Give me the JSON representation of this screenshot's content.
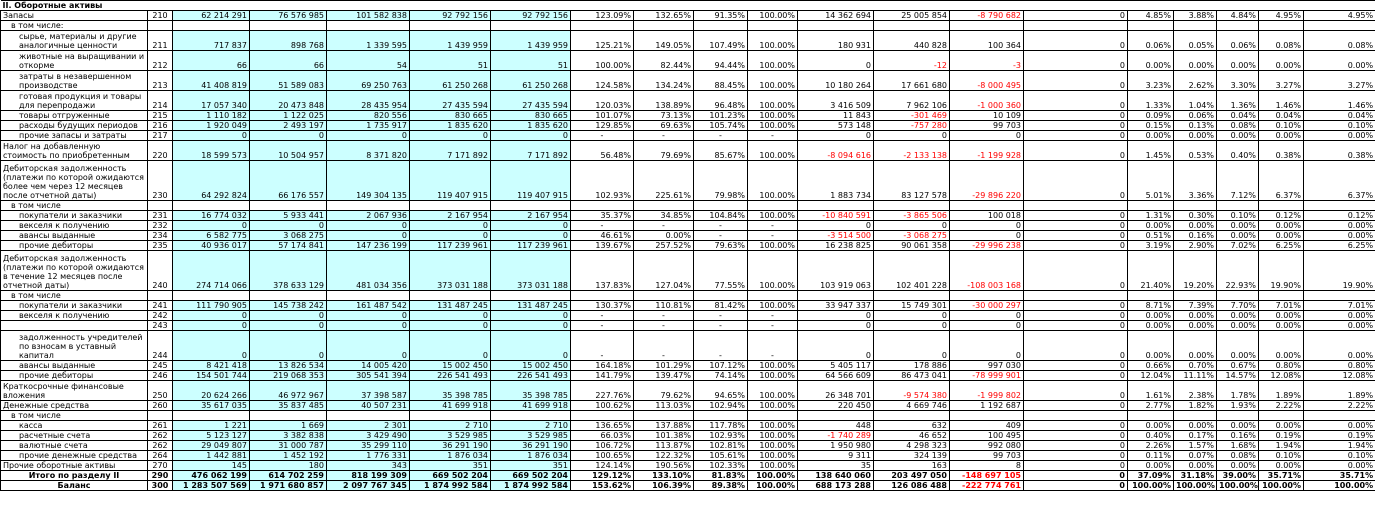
{
  "section_title": "II. Оборотные активы",
  "rows": [
    {
      "l": "Запасы",
      "c": "210",
      "v": [
        "62 214 291",
        "76 576 985",
        "101 582 838",
        "92 792 156",
        "92 792 156",
        "123.09%",
        "132.65%",
        "91.35%",
        "100.00%",
        "14 362 694",
        "25 005 854",
        "-8 790 682",
        "0",
        "4.85%",
        "3.88%",
        "4.84%",
        "4.95%",
        "4.95%"
      ],
      "h": 10
    },
    {
      "l": "в том числе:",
      "c": "",
      "v": [
        "",
        "",
        "",
        "",
        "",
        "",
        "",
        "",
        "",
        "",
        "",
        "",
        "",
        "",
        "",
        "",
        "",
        ""
      ],
      "h": 9,
      "ind": 1
    },
    {
      "l": "сырье, материалы и другие аналогичные ценности",
      "c": "211",
      "v": [
        "717 837",
        "898 768",
        "1 339 595",
        "1 439 959",
        "1 439 959",
        "125.21%",
        "149.05%",
        "107.49%",
        "100.00%",
        "180 931",
        "440 828",
        "100 364",
        "0",
        "0.06%",
        "0.05%",
        "0.06%",
        "0.08%",
        "0.08%"
      ],
      "h": 20,
      "ind": 2
    },
    {
      "l": "животные на выращивании и откорме",
      "c": "212",
      "v": [
        "66",
        "66",
        "54",
        "51",
        "51",
        "100.00%",
        "82.44%",
        "94.44%",
        "100.00%",
        "0",
        "-12",
        "-3",
        "0",
        "0.00%",
        "0.00%",
        "0.00%",
        "0.00%",
        "0.00%"
      ],
      "h": 20,
      "ind": 2
    },
    {
      "l": "затраты в незавершенном производстве",
      "c": "213",
      "v": [
        "41 408 819",
        "51 589 083",
        "69 250 763",
        "61 250 268",
        "61 250 268",
        "124.58%",
        "134.24%",
        "88.45%",
        "100.00%",
        "10 180 264",
        "17 661 680",
        "-8 000 495",
        "0",
        "3.23%",
        "2.62%",
        "3.30%",
        "3.27%",
        "3.27%"
      ],
      "h": 20,
      "ind": 2
    },
    {
      "l": "готовая продукция и товары для перепродажи",
      "c": "214",
      "v": [
        "17 057 340",
        "20 473 848",
        "28 435 954",
        "27 435 594",
        "27 435 594",
        "120.03%",
        "138.89%",
        "96.48%",
        "100.00%",
        "3 416 509",
        "7 962 106",
        "-1 000 360",
        "0",
        "1.33%",
        "1.04%",
        "1.36%",
        "1.46%",
        "1.46%"
      ],
      "h": 20,
      "ind": 2
    },
    {
      "l": "товары отгруженные",
      "c": "215",
      "v": [
        "1 110 182",
        "1 122 025",
        "820 556",
        "830 665",
        "830 665",
        "101.07%",
        "73.13%",
        "101.23%",
        "100.00%",
        "11 843",
        "-301 469",
        "10 109",
        "0",
        "0.09%",
        "0.06%",
        "0.04%",
        "0.04%",
        "0.04%"
      ],
      "h": 10,
      "ind": 2
    },
    {
      "l": "расходы будущих периодов",
      "c": "216",
      "v": [
        "1 920 049",
        "2 493 197",
        "1 735 917",
        "1 835 620",
        "1 835 620",
        "129.85%",
        "69.63%",
        "105.74%",
        "100.00%",
        "573 148",
        "-757 280",
        "99 703",
        "0",
        "0.15%",
        "0.13%",
        "0.08%",
        "0.10%",
        "0.10%"
      ],
      "h": 10,
      "ind": 2
    },
    {
      "l": "прочие запасы и затраты",
      "c": "217",
      "v": [
        "0",
        "0",
        "0",
        "0",
        "0",
        "-",
        "-",
        "-",
        "-",
        "0",
        "0",
        "0",
        "0",
        "0.00%",
        "0.00%",
        "0.00%",
        "0.00%",
        "0.00%"
      ],
      "h": 9,
      "ind": 2
    },
    {
      "l": "Налог на добавленную стоимость по приобретенным",
      "c": "220",
      "v": [
        "18 599 573",
        "10 504 957",
        "8 371 820",
        "7 171 892",
        "7 171 892",
        "56.48%",
        "79.69%",
        "85.67%",
        "100.00%",
        "-8 094 616",
        "-2 133 138",
        "-1 199 928",
        "0",
        "1.45%",
        "0.53%",
        "0.40%",
        "0.38%",
        "0.38%"
      ],
      "h": 20
    },
    {
      "l": "Дебиторская задолженность (платежи по которой ожидаются более чем через 12 месяцев после отчетной даты)",
      "c": "230",
      "v": [
        "64 292 824",
        "66 176 557",
        "149 304 135",
        "119 407 915",
        "119 407 915",
        "102.93%",
        "225.61%",
        "79.98%",
        "100.00%",
        "1 883 734",
        "83 127 578",
        "-29 896 220",
        "0",
        "5.01%",
        "3.36%",
        "7.12%",
        "6.37%",
        "6.37%"
      ],
      "h": 40
    },
    {
      "l": "в том числе",
      "c": "",
      "v": [
        "",
        "",
        "",
        "",
        "",
        "",
        "",
        "",
        "",
        "",
        "",
        "",
        "",
        "",
        "",
        "",
        "",
        ""
      ],
      "h": 9,
      "ind": 1
    },
    {
      "l": "покупатели и заказчики",
      "c": "231",
      "v": [
        "16 774 032",
        "5 933 441",
        "2 067 936",
        "2 167 954",
        "2 167 954",
        "35.37%",
        "34.85%",
        "104.84%",
        "100.00%",
        "-10 840 591",
        "-3 865 506",
        "100 018",
        "0",
        "1.31%",
        "0.30%",
        "0.10%",
        "0.12%",
        "0.12%"
      ],
      "h": 10,
      "ind": 2
    },
    {
      "l": "векселя к получению",
      "c": "232",
      "v": [
        "0",
        "0",
        "0",
        "0",
        "0",
        "-",
        "-",
        "-",
        "-",
        "0",
        "0",
        "0",
        "0",
        "0.00%",
        "0.00%",
        "0.00%",
        "0.00%",
        "0.00%"
      ],
      "h": 9,
      "ind": 2
    },
    {
      "l": "авансы выданные",
      "c": "234",
      "v": [
        "6 582 775",
        "3 068 275",
        "0",
        "0",
        "0",
        "46.61%",
        "0.00%",
        "-",
        "-",
        "-3 514 500",
        "-3 068 275",
        "0",
        "0",
        "0.51%",
        "0.16%",
        "0.00%",
        "0.00%",
        "0.00%"
      ],
      "h": 9,
      "ind": 2
    },
    {
      "l": "прочие дебиторы",
      "c": "235",
      "v": [
        "40 936 017",
        "57 174 841",
        "147 236 199",
        "117 239 961",
        "117 239 961",
        "139.67%",
        "257.52%",
        "79.63%",
        "100.00%",
        "16 238 825",
        "90 061 358",
        "-29 996 238",
        "0",
        "3.19%",
        "2.90%",
        "7.02%",
        "6.25%",
        "6.25%"
      ],
      "h": 10,
      "ind": 2
    },
    {
      "l": "Дебиторская задолженность (платежи по которой ожидаются в течение 12 месяцев после отчетной даты)",
      "c": "240",
      "v": [
        "274 714 066",
        "378 633 129",
        "481 034 356",
        "373 031 188",
        "373 031 188",
        "137.83%",
        "127.04%",
        "77.55%",
        "100.00%",
        "103 919 063",
        "102 401 228",
        "-108 003 168",
        "0",
        "21.40%",
        "19.20%",
        "22.93%",
        "19.90%",
        "19.90%"
      ],
      "h": 40
    },
    {
      "l": "в том числе",
      "c": "",
      "v": [
        "",
        "",
        "",
        "",
        "",
        "",
        "",
        "",
        "",
        "",
        "",
        "",
        "",
        "",
        "",
        "",
        "",
        ""
      ],
      "h": 9,
      "ind": 1
    },
    {
      "l": "покупатели и заказчики",
      "c": "241",
      "v": [
        "111 790 905",
        "145 738 242",
        "161 487 542",
        "131 487 245",
        "131 487 245",
        "130.37%",
        "110.81%",
        "81.42%",
        "100.00%",
        "33 947 337",
        "15 749 301",
        "-30 000 297",
        "0",
        "8.71%",
        "7.39%",
        "7.70%",
        "7.01%",
        "7.01%"
      ],
      "h": 10,
      "ind": 2
    },
    {
      "l": "векселя к получению",
      "c": "242",
      "v": [
        "0",
        "0",
        "0",
        "0",
        "0",
        "-",
        "-",
        "-",
        "-",
        "0",
        "0",
        "0",
        "0",
        "0.00%",
        "0.00%",
        "0.00%",
        "0.00%",
        "0.00%"
      ],
      "h": 9,
      "ind": 2
    },
    {
      "l": "",
      "c": "243",
      "v": [
        "0",
        "0",
        "0",
        "0",
        "0",
        "-",
        "-",
        "-",
        "-",
        "0",
        "0",
        "0",
        "0",
        "0.00%",
        "0.00%",
        "0.00%",
        "0.00%",
        "0.00%"
      ],
      "h": 9,
      "ind": 2
    },
    {
      "l": "задолженность учредителей по взносам в уставный капитал",
      "c": "244",
      "v": [
        "0",
        "0",
        "0",
        "0",
        "0",
        "-",
        "-",
        "-",
        "-",
        "0",
        "0",
        "0",
        "0",
        "0.00%",
        "0.00%",
        "0.00%",
        "0.00%",
        "0.00%"
      ],
      "h": 30,
      "ind": 2
    },
    {
      "l": "авансы выданные",
      "c": "245",
      "v": [
        "8 421 418",
        "13 826 534",
        "14 005 420",
        "15 002 450",
        "15 002 450",
        "164.18%",
        "101.29%",
        "107.12%",
        "100.00%",
        "5 405 117",
        "178 886",
        "997 030",
        "0",
        "0.66%",
        "0.70%",
        "0.67%",
        "0.80%",
        "0.80%"
      ],
      "h": 9,
      "ind": 2
    },
    {
      "l": "прочие дебиторы",
      "c": "246",
      "v": [
        "154 501 744",
        "219 068 353",
        "305 541 394",
        "226 541 493",
        "226 541 493",
        "141.79%",
        "139.47%",
        "74.14%",
        "100.00%",
        "64 566 609",
        "86 473 041",
        "-78 999 901",
        "0",
        "12.04%",
        "11.11%",
        "14.57%",
        "12.08%",
        "12.08%"
      ],
      "h": 10,
      "ind": 2
    },
    {
      "l": "Краткосрочные финансовые вложения",
      "c": "250",
      "v": [
        "20 624 266",
        "46 972 967",
        "37 398 587",
        "35 398 785",
        "35 398 785",
        "227.76%",
        "79.62%",
        "94.65%",
        "100.00%",
        "26 348 701",
        "-9 574 380",
        "-1 999 802",
        "0",
        "1.61%",
        "2.38%",
        "1.78%",
        "1.89%",
        "1.89%"
      ],
      "h": 20
    },
    {
      "l": "Денежные средства",
      "c": "260",
      "v": [
        "35 617 035",
        "35 837 485",
        "40 507 231",
        "41 699 918",
        "41 699 918",
        "100.62%",
        "113.03%",
        "102.94%",
        "100.00%",
        "220 450",
        "4 669 746",
        "1 192 687",
        "0",
        "2.77%",
        "1.82%",
        "1.93%",
        "2.22%",
        "2.22%"
      ],
      "h": 10
    },
    {
      "l": "в том числе",
      "c": "",
      "v": [
        "",
        "",
        "",
        "",
        "",
        "",
        "",
        "",
        "",
        "",
        "",
        "",
        "",
        "",
        "",
        "",
        "",
        ""
      ],
      "h": 9,
      "ind": 1
    },
    {
      "l": "касса",
      "c": "261",
      "v": [
        "1 221",
        "1 669",
        "2 301",
        "2 710",
        "2 710",
        "136.65%",
        "137.88%",
        "117.78%",
        "100.00%",
        "448",
        "632",
        "409",
        "0",
        "0.00%",
        "0.00%",
        "0.00%",
        "0.00%",
        "0.00%"
      ],
      "h": 9,
      "ind": 2
    },
    {
      "l": "расчетные счета",
      "c": "262",
      "v": [
        "5 123 127",
        "3 382 838",
        "3 429 490",
        "3 529 985",
        "3 529 985",
        "66.03%",
        "101.38%",
        "102.93%",
        "100.00%",
        "-1 740 289",
        "46 652",
        "100 495",
        "0",
        "0.40%",
        "0.17%",
        "0.16%",
        "0.19%",
        "0.19%"
      ],
      "h": 9,
      "ind": 2
    },
    {
      "l": "валютные счета",
      "c": "262",
      "v": [
        "29 049 807",
        "31 000 787",
        "35 299 110",
        "36 291 190",
        "36 291 190",
        "106.72%",
        "113.87%",
        "102.81%",
        "100.00%",
        "1 950 980",
        "4 298 323",
        "992 080",
        "0",
        "2.26%",
        "1.57%",
        "1.68%",
        "1.94%",
        "1.94%"
      ],
      "h": 9,
      "ind": 2
    },
    {
      "l": "прочие денежные средства",
      "c": "264",
      "v": [
        "1 442 881",
        "1 452 192",
        "1 776 331",
        "1 876 034",
        "1 876 034",
        "100.65%",
        "122.32%",
        "105.61%",
        "100.00%",
        "9 311",
        "324 139",
        "99 703",
        "0",
        "0.11%",
        "0.07%",
        "0.08%",
        "0.10%",
        "0.10%"
      ],
      "h": 9,
      "ind": 2
    },
    {
      "l": "Прочие оборотные активы",
      "c": "270",
      "v": [
        "145",
        "180",
        "343",
        "351",
        "351",
        "124.14%",
        "190.56%",
        "102.33%",
        "100.00%",
        "35",
        "163",
        "8",
        "0",
        "0.00%",
        "0.00%",
        "0.00%",
        "0.00%",
        "0.00%"
      ],
      "h": 9
    },
    {
      "l": "Итого по разделу II",
      "c": "290",
      "v": [
        "476 062 199",
        "614 702 259",
        "818 199 309",
        "669 502 204",
        "669 502 204",
        "129.12%",
        "133.10%",
        "81.83%",
        "100.00%",
        "138 640 060",
        "203 497 050",
        "-148 697 105",
        "0",
        "37.09%",
        "31.18%",
        "39.00%",
        "35.71%",
        "35.71%"
      ],
      "h": 9,
      "b": 1
    },
    {
      "l": "Баланс",
      "c": "300",
      "v": [
        "1 283 507 569",
        "1 971 680 857",
        "2 097 767 345",
        "1 874 992 584",
        "1 874 992 584",
        "153.62%",
        "106.39%",
        "89.38%",
        "100.00%",
        "688 173 288",
        "126 086 488",
        "-222 774 761",
        "0",
        "100.00%",
        "100.00%",
        "100.00%",
        "100.00%",
        "100.00%"
      ],
      "h": 9,
      "b": 1
    }
  ]
}
